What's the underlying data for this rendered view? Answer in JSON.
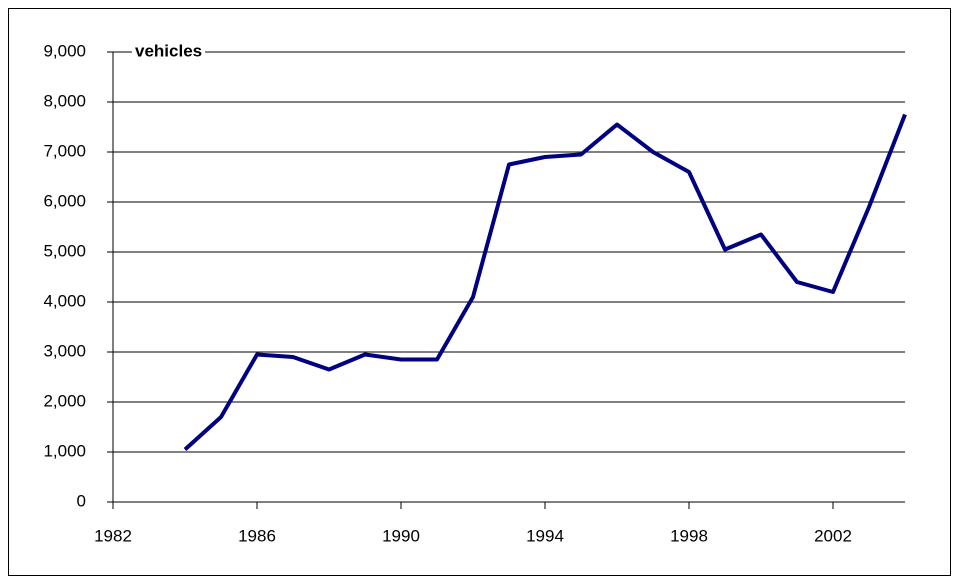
{
  "chart_data": {
    "type": "line",
    "annotation": "vehicles",
    "x": [
      1984,
      1985,
      1986,
      1987,
      1988,
      1989,
      1990,
      1991,
      1992,
      1993,
      1994,
      1995,
      1996,
      1997,
      1998,
      1999,
      2000,
      2001,
      2002,
      2003,
      2004
    ],
    "series": [
      {
        "color": "#000080",
        "values": [
          1050,
          1700,
          2950,
          2900,
          2650,
          2950,
          2850,
          2850,
          4100,
          6750,
          6900,
          6950,
          7550,
          7000,
          6600,
          5050,
          5350,
          4400,
          4200,
          5900,
          7750
        ]
      }
    ],
    "xlim": [
      1982,
      2004
    ],
    "xticks": [
      1982,
      1986,
      1990,
      1994,
      1998,
      2002
    ],
    "ylim": [
      0,
      9000
    ],
    "yticks": [
      0,
      {
        "value": 1000,
        "label": "1,000"
      },
      {
        "value": 2000,
        "label": "2,000"
      },
      {
        "value": 3000,
        "label": "3,000"
      },
      {
        "value": 4000,
        "label": "4,000"
      },
      {
        "value": 5000,
        "label": "5,000"
      },
      {
        "value": 6000,
        "label": "6,000"
      },
      {
        "value": 7000,
        "label": "7,000"
      },
      {
        "value": 8000,
        "label": "8,000"
      },
      {
        "value": 9000,
        "label": "9,000"
      }
    ],
    "grid": true
  }
}
